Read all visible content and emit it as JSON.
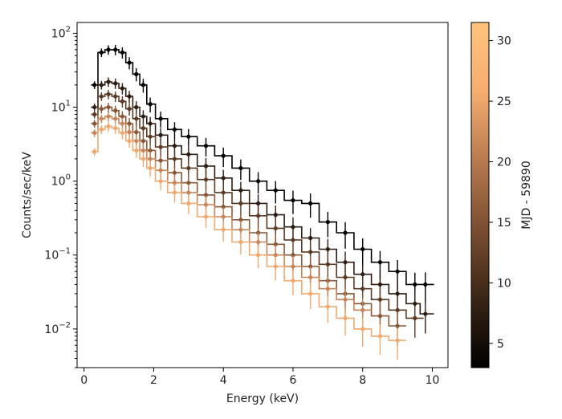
{
  "chart_data": {
    "type": "scatter",
    "title": "",
    "xlabel": "Energy (keV)",
    "ylabel": "Counts/sec/keV",
    "xlim": [
      -0.2,
      10.45
    ],
    "ylim": [
      0.003,
      140
    ],
    "yscale": "log",
    "x_ticks": [
      0,
      2,
      4,
      6,
      8,
      10
    ],
    "x_tick_labels": [
      "0",
      "2",
      "4",
      "6",
      "8",
      "10"
    ],
    "y_ticks": [
      0.01,
      0.1,
      1,
      10,
      100
    ],
    "y_tick_labels": [
      {
        "base": "10",
        "exp": "−2"
      },
      {
        "base": "10",
        "exp": "−1"
      },
      {
        "base": "10",
        "exp": "0"
      },
      {
        "base": "10",
        "exp": "1"
      },
      {
        "base": "10",
        "exp": "2"
      }
    ],
    "colorbar": {
      "label": "MJD - 59890",
      "range": [
        3,
        31.5
      ],
      "ticks": [
        5,
        10,
        15,
        20,
        25,
        30
      ],
      "tick_labels": [
        "5",
        "10",
        "15",
        "20",
        "25",
        "30"
      ],
      "colormap": "copper",
      "stops": [
        "#000000",
        "#3a2516",
        "#7a4e31",
        "#b87a4f",
        "#f6ad6f",
        "#ffc37d"
      ]
    },
    "series": [
      {
        "name": "MJD-59890 = 3",
        "color_value": 3,
        "color": "#000000",
        "energy": [
          0.3,
          0.5,
          0.7,
          0.9,
          1.1,
          1.3,
          1.5,
          1.7,
          1.9,
          2.2,
          2.6,
          3.0,
          3.5,
          4.0,
          4.5,
          5.0,
          5.5,
          6.0,
          6.5,
          7.0,
          7.5,
          8.0,
          8.5,
          9.0,
          9.5,
          9.8
        ],
        "rate": [
          20,
          55,
          60,
          60,
          55,
          40,
          28,
          20,
          11,
          7,
          5,
          4,
          3,
          2.2,
          1.5,
          1.0,
          0.75,
          0.55,
          0.5,
          0.28,
          0.2,
          0.12,
          0.08,
          0.06,
          0.04,
          0.04
        ]
      },
      {
        "name": "MJD-59890 = 8",
        "color_value": 8,
        "color": "#2e1d12",
        "energy": [
          0.3,
          0.5,
          0.7,
          0.9,
          1.1,
          1.3,
          1.5,
          1.7,
          1.9,
          2.2,
          2.6,
          3.0,
          3.5,
          4.0,
          4.5,
          5.0,
          5.5,
          6.0,
          6.5,
          7.0,
          7.5,
          8.0,
          8.5,
          9.0,
          9.5,
          9.8
        ],
        "rate": [
          10,
          20,
          22,
          21,
          18,
          14,
          10,
          7.5,
          6,
          4.2,
          3,
          2.3,
          1.6,
          1.1,
          0.75,
          0.5,
          0.35,
          0.24,
          0.17,
          0.12,
          0.08,
          0.055,
          0.04,
          0.03,
          0.022,
          0.016
        ]
      },
      {
        "name": "MJD-59890 = 14",
        "color_value": 14,
        "color": "#5c3b25",
        "energy": [
          0.3,
          0.5,
          0.7,
          0.9,
          1.1,
          1.3,
          1.5,
          1.7,
          1.9,
          2.2,
          2.6,
          3.0,
          3.5,
          4.0,
          4.5,
          5.0,
          5.5,
          6.0,
          6.5,
          7.0,
          7.5,
          8.0,
          8.5,
          9.0,
          9.5
        ],
        "rate": [
          8,
          14,
          15,
          14,
          12,
          9.5,
          7,
          5.2,
          4,
          2.9,
          2,
          1.5,
          1.05,
          0.7,
          0.5,
          0.34,
          0.23,
          0.16,
          0.11,
          0.075,
          0.05,
          0.035,
          0.025,
          0.018,
          0.014
        ]
      },
      {
        "name": "MJD-59890 = 20",
        "color_value": 20,
        "color": "#8a5837",
        "energy": [
          0.3,
          0.5,
          0.7,
          0.9,
          1.1,
          1.3,
          1.5,
          1.7,
          1.9,
          2.2,
          2.6,
          3.0,
          3.5,
          4.0,
          4.5,
          5.0,
          5.5,
          6.0,
          6.5,
          7.0,
          7.5,
          8.0,
          8.5,
          9.0
        ],
        "rate": [
          6,
          9.5,
          10,
          9,
          7.5,
          6,
          4.6,
          3.5,
          2.6,
          1.9,
          1.3,
          0.95,
          0.65,
          0.45,
          0.3,
          0.2,
          0.14,
          0.1,
          0.07,
          0.045,
          0.03,
          0.022,
          0.015,
          0.011
        ]
      },
      {
        "name": "MJD-59890 = 26",
        "color_value": 26,
        "color": "#c9855a",
        "energy": [
          0.3,
          0.5,
          0.7,
          0.9,
          1.1,
          1.3,
          1.5,
          1.7,
          1.9,
          2.2,
          2.6,
          3.0,
          3.5,
          4.0,
          4.5,
          5.0,
          5.5,
          6.0,
          6.5,
          7.0,
          7.5,
          8.0
        ],
        "rate": [
          4.5,
          7,
          7.5,
          7,
          6,
          4.6,
          3.5,
          2.6,
          2,
          1.4,
          0.95,
          0.7,
          0.48,
          0.33,
          0.22,
          0.15,
          0.1,
          0.07,
          0.05,
          0.035,
          0.025,
          0.018
        ]
      },
      {
        "name": "MJD-59890 = 31",
        "color_value": 31,
        "color": "#f0a970",
        "energy": [
          0.3,
          0.5,
          0.7,
          0.9,
          1.1,
          1.3,
          1.5,
          1.7,
          1.9,
          2.2,
          2.6,
          3.0,
          3.5,
          4.0,
          4.5,
          5.0,
          5.5,
          6.0,
          6.5,
          7.0,
          7.5,
          8.0,
          8.5,
          9.0
        ],
        "rate": [
          2.5,
          5,
          5.5,
          5.2,
          4.5,
          3.5,
          2.6,
          2,
          1.5,
          1.0,
          0.7,
          0.5,
          0.33,
          0.22,
          0.15,
          0.1,
          0.07,
          0.045,
          0.03,
          0.02,
          0.014,
          0.01,
          0.008,
          0.007
        ]
      }
    ]
  }
}
